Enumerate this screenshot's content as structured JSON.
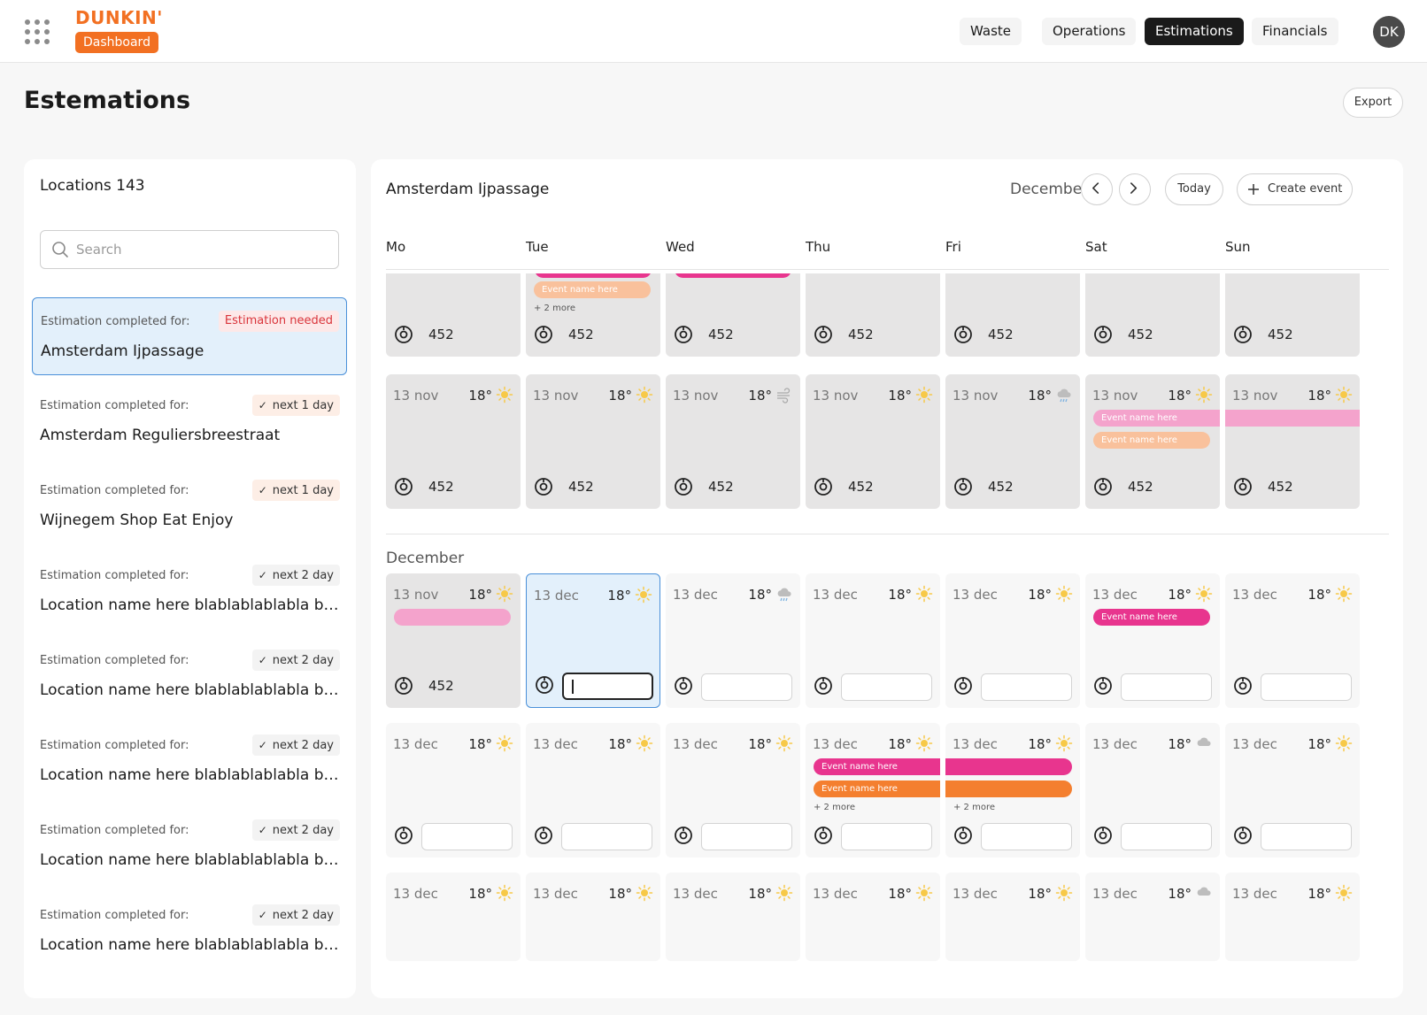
{
  "header": {
    "brand": "DUNKIN'",
    "badge": "Dashboard",
    "nav": [
      "Waste",
      "Operations",
      "Estimations",
      "Financials"
    ],
    "active_nav": "Estimations",
    "avatar": "DK"
  },
  "page": {
    "title": "Estemations",
    "export": "Export"
  },
  "sidebar": {
    "title": "Locations 143",
    "search_placeholder": "Search",
    "locations": [
      {
        "label": "Estimation completed for:",
        "tag": "Estimation needed",
        "name": "Amsterdam Ijpassage"
      },
      {
        "label": "Estimation completed for:",
        "tag": "next 1 day",
        "name": "Amsterdam Reguliersbreestraat"
      },
      {
        "label": "Estimation completed for:",
        "tag": "next 1 day",
        "name": "Wijnegem Shop Eat Enjoy"
      },
      {
        "label": "Estimation completed for:",
        "tag": "next 2 day",
        "name": "Location name here blablablablabla bla..."
      },
      {
        "label": "Estimation completed for:",
        "tag": "next 2 day",
        "name": "Location name here blablablablabla bla..."
      },
      {
        "label": "Estimation completed for:",
        "tag": "next 2 day",
        "name": "Location name here blablablablabla bla..."
      },
      {
        "label": "Estimation completed for:",
        "tag": "next 2 day",
        "name": "Location name here blablablablabla bla..."
      },
      {
        "label": "Estimation completed for:",
        "tag": "next 2 day",
        "name": "Location name here blablablablabla bla..."
      }
    ]
  },
  "calendar": {
    "location": "Amsterdam Ijpassage",
    "month": "December",
    "today": "Today",
    "create_event": "Create event",
    "days": [
      "Mo",
      "Tue",
      "Wed",
      "Thu",
      "Fri",
      "Sat",
      "Sun"
    ],
    "section_month": "December",
    "colors": {
      "pink": "#f4a3cc",
      "magenta": "#e8358e",
      "peach": "#f9c19c",
      "orange": "#f47f2f",
      "selected": "#e3f0fb"
    },
    "weeks": [
      {
        "kind": "past",
        "cells": [
          {
            "value": "452",
            "events": []
          },
          {
            "value": "452",
            "events": [
              {
                "text": "",
                "color": "magenta"
              },
              {
                "text": "Event name here",
                "color": "peach"
              }
            ],
            "more": "+ 2 more"
          },
          {
            "value": "452",
            "events": [
              {
                "text": "",
                "color": "magenta"
              }
            ]
          },
          {
            "value": "452",
            "events": []
          },
          {
            "value": "452",
            "events": []
          },
          {
            "value": "452",
            "events": []
          },
          {
            "value": "452",
            "events": []
          }
        ]
      },
      {
        "kind": "past",
        "cells": [
          {
            "date": "13 nov",
            "temp": "18°",
            "weather": "sun-icon",
            "value": "452",
            "events": []
          },
          {
            "date": "13 nov",
            "temp": "18°",
            "weather": "sun-icon",
            "value": "452",
            "events": []
          },
          {
            "date": "13 nov",
            "temp": "18°",
            "weather": "wind-icon",
            "value": "452",
            "events": []
          },
          {
            "date": "13 nov",
            "temp": "18°",
            "weather": "sun-icon",
            "value": "452",
            "events": []
          },
          {
            "date": "13 nov",
            "temp": "18°",
            "weather": "rain-cloud-icon",
            "value": "452",
            "events": []
          },
          {
            "date": "13 nov",
            "temp": "18°",
            "weather": "sun-icon",
            "value": "452",
            "events": [
              {
                "text": "Event name here",
                "color": "pink"
              },
              {
                "text": "Event name here",
                "color": "peach"
              }
            ]
          },
          {
            "date": "13 nov",
            "temp": "18°",
            "weather": "sun-icon",
            "value": "452",
            "events": [
              {
                "text": "",
                "color": "pink"
              }
            ]
          }
        ]
      },
      {
        "kind": "current",
        "cells": [
          {
            "date": "13 nov",
            "temp": "18°",
            "weather": "sun-icon",
            "value": "452",
            "past": true,
            "events": [
              {
                "text": "",
                "color": "pink"
              }
            ]
          },
          {
            "date": "13 dec",
            "temp": "18°",
            "weather": "sun-icon",
            "input": true,
            "focused": true,
            "selected": true,
            "events": []
          },
          {
            "date": "13 dec",
            "temp": "18°",
            "weather": "rain-cloud-icon",
            "input": true,
            "events": []
          },
          {
            "date": "13 dec",
            "temp": "18°",
            "weather": "sun-icon",
            "input": true,
            "events": []
          },
          {
            "date": "13 dec",
            "temp": "18°",
            "weather": "sun-icon",
            "input": true,
            "events": []
          },
          {
            "date": "13 dec",
            "temp": "18°",
            "weather": "sun-icon",
            "input": true,
            "events": [
              {
                "text": "Event name here",
                "color": "magenta"
              }
            ]
          },
          {
            "date": "13 dec",
            "temp": "18°",
            "weather": "sun-icon",
            "input": true,
            "events": []
          }
        ]
      },
      {
        "kind": "future",
        "cells": [
          {
            "date": "13 dec",
            "temp": "18°",
            "weather": "sun-icon",
            "input": true,
            "events": []
          },
          {
            "date": "13 dec",
            "temp": "18°",
            "weather": "sun-icon",
            "input": true,
            "events": []
          },
          {
            "date": "13 dec",
            "temp": "18°",
            "weather": "sun-icon",
            "input": true,
            "events": []
          },
          {
            "date": "13 dec",
            "temp": "18°",
            "weather": "sun-icon",
            "input": true,
            "events": [
              {
                "text": "Event name here",
                "color": "magenta"
              },
              {
                "text": "Event name here",
                "color": "orange"
              }
            ],
            "more": "+ 2 more"
          },
          {
            "date": "13 dec",
            "temp": "18°",
            "weather": "sun-icon",
            "input": true,
            "events": [
              {
                "text": "",
                "color": "magenta"
              },
              {
                "text": "",
                "color": "orange"
              }
            ],
            "more": "+ 2 more"
          },
          {
            "date": "13 dec",
            "temp": "18°",
            "weather": "cloud-icon",
            "input": true,
            "events": []
          },
          {
            "date": "13 dec",
            "temp": "18°",
            "weather": "sun-icon",
            "input": true,
            "events": []
          }
        ]
      },
      {
        "kind": "future",
        "cells": [
          {
            "date": "13 dec",
            "temp": "18°",
            "weather": "sun-icon",
            "events": []
          },
          {
            "date": "13 dec",
            "temp": "18°",
            "weather": "sun-icon",
            "events": []
          },
          {
            "date": "13 dec",
            "temp": "18°",
            "weather": "sun-icon",
            "events": []
          },
          {
            "date": "13 dec",
            "temp": "18°",
            "weather": "sun-icon",
            "events": []
          },
          {
            "date": "13 dec",
            "temp": "18°",
            "weather": "sun-icon",
            "events": []
          },
          {
            "date": "13 dec",
            "temp": "18°",
            "weather": "cloud-icon",
            "events": []
          },
          {
            "date": "13 dec",
            "temp": "18°",
            "weather": "sun-icon",
            "events": []
          }
        ]
      }
    ]
  }
}
